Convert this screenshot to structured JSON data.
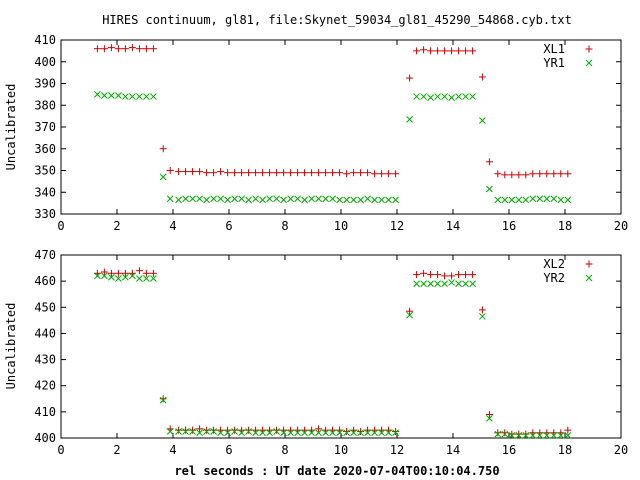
{
  "title": "HIRES continuum, gl81, file:Skynet_59034_gl81_45290_54868.cyb.txt",
  "xlabel": "rel seconds : UT date 2020-07-04T00:10:04.750",
  "chart_data": [
    {
      "type": "scatter",
      "ylabel": "Uncalibrated",
      "xlim": [
        0,
        20
      ],
      "ylim": [
        330,
        410
      ],
      "xticks": [
        0,
        2,
        4,
        6,
        8,
        10,
        12,
        14,
        16,
        18,
        20
      ],
      "yticks": [
        330,
        340,
        350,
        360,
        370,
        380,
        390,
        400,
        410
      ],
      "legend_position": "top-right",
      "grid": false,
      "series": [
        {
          "name": "XL1",
          "marker": "+",
          "color": "#cc0000",
          "x": [
            1.3,
            1.55,
            1.8,
            2.05,
            2.3,
            2.55,
            2.8,
            3.05,
            3.3,
            3.65,
            3.9,
            4.2,
            4.45,
            4.7,
            4.95,
            5.2,
            5.45,
            5.7,
            5.95,
            6.2,
            6.45,
            6.7,
            6.95,
            7.2,
            7.45,
            7.7,
            7.95,
            8.2,
            8.45,
            8.7,
            8.95,
            9.2,
            9.45,
            9.7,
            9.95,
            10.2,
            10.45,
            10.7,
            10.95,
            11.2,
            11.45,
            11.7,
            11.95,
            12.45,
            12.7,
            12.95,
            13.2,
            13.45,
            13.7,
            13.95,
            14.2,
            14.45,
            14.7,
            15.05,
            15.3,
            15.6,
            15.85,
            16.1,
            16.35,
            16.6,
            16.85,
            17.1,
            17.35,
            17.6,
            17.85,
            18.1
          ],
          "y": [
            406,
            406,
            406.5,
            406,
            406,
            406.5,
            406,
            406,
            406,
            360,
            350,
            349.5,
            349.5,
            349.5,
            349.5,
            349,
            349,
            349.5,
            349,
            349,
            349,
            349,
            349,
            349,
            349,
            349,
            349,
            349,
            349,
            349,
            349,
            349,
            349,
            349,
            349,
            348.5,
            349,
            349,
            349,
            348.5,
            348.5,
            348.5,
            348.5,
            392.5,
            405,
            405.5,
            405,
            405,
            405,
            405,
            405,
            405,
            405,
            393,
            354,
            348.5,
            348,
            348,
            348,
            348,
            348.5,
            348.5,
            348.5,
            348.5,
            348.5,
            348.5
          ]
        },
        {
          "name": "YR1",
          "marker": "x",
          "color": "#00aa00",
          "x": [
            1.3,
            1.55,
            1.8,
            2.05,
            2.3,
            2.55,
            2.8,
            3.05,
            3.3,
            3.65,
            3.9,
            4.2,
            4.45,
            4.7,
            4.95,
            5.2,
            5.45,
            5.7,
            5.95,
            6.2,
            6.45,
            6.7,
            6.95,
            7.2,
            7.45,
            7.7,
            7.95,
            8.2,
            8.45,
            8.7,
            8.95,
            9.2,
            9.45,
            9.7,
            9.95,
            10.2,
            10.45,
            10.7,
            10.95,
            11.2,
            11.45,
            11.7,
            11.95,
            12.45,
            12.7,
            12.95,
            13.2,
            13.45,
            13.7,
            13.95,
            14.2,
            14.45,
            14.7,
            15.05,
            15.3,
            15.6,
            15.85,
            16.1,
            16.35,
            16.6,
            16.85,
            17.1,
            17.35,
            17.6,
            17.85,
            18.1
          ],
          "y": [
            385,
            384.5,
            384.5,
            384.5,
            384,
            384,
            384,
            384,
            384,
            347,
            337,
            336.5,
            337,
            337,
            337,
            336.5,
            337,
            337,
            336.5,
            337,
            337,
            336.5,
            337,
            336.5,
            337,
            337,
            336.5,
            337,
            337,
            336.5,
            337,
            337,
            337,
            337,
            336.5,
            336.5,
            336.5,
            336.5,
            337,
            336.5,
            336.5,
            336.5,
            336.5,
            373.5,
            384,
            384,
            383.5,
            384,
            384,
            383.5,
            384,
            384,
            384,
            373,
            341.5,
            336.5,
            336.5,
            336.5,
            336.5,
            336.5,
            337,
            337,
            337,
            337,
            336.5,
            336.5
          ]
        }
      ]
    },
    {
      "type": "scatter",
      "ylabel": "Uncalibrated",
      "xlim": [
        0,
        20
      ],
      "ylim": [
        400,
        470
      ],
      "xticks": [
        0,
        2,
        4,
        6,
        8,
        10,
        12,
        14,
        16,
        18,
        20
      ],
      "yticks": [
        400,
        410,
        420,
        430,
        440,
        450,
        460,
        470
      ],
      "legend_position": "top-right",
      "grid": false,
      "series": [
        {
          "name": "XL2",
          "marker": "+",
          "color": "#cc0000",
          "x": [
            1.3,
            1.55,
            1.8,
            2.05,
            2.3,
            2.55,
            2.8,
            3.05,
            3.3,
            3.65,
            3.9,
            4.2,
            4.45,
            4.7,
            4.95,
            5.2,
            5.45,
            5.7,
            5.95,
            6.2,
            6.45,
            6.7,
            6.95,
            7.2,
            7.45,
            7.7,
            7.95,
            8.2,
            8.45,
            8.7,
            8.95,
            9.2,
            9.45,
            9.7,
            9.95,
            10.2,
            10.45,
            10.7,
            10.95,
            11.2,
            11.45,
            11.7,
            11.95,
            12.45,
            12.7,
            12.95,
            13.2,
            13.45,
            13.7,
            13.95,
            14.2,
            14.45,
            14.7,
            15.05,
            15.3,
            15.6,
            15.85,
            16.1,
            16.35,
            16.6,
            16.85,
            17.1,
            17.35,
            17.6,
            17.85,
            18.1
          ],
          "y": [
            463,
            463.5,
            463,
            463,
            463,
            463,
            464,
            463,
            463,
            415,
            403.5,
            403,
            403,
            403,
            403.5,
            403,
            403,
            403,
            403,
            403,
            403,
            403,
            403,
            403,
            403,
            403,
            403,
            403,
            403,
            403,
            403,
            403.5,
            403,
            403,
            403,
            402.5,
            403,
            402.5,
            403,
            403,
            403,
            403,
            402.5,
            448.5,
            462.5,
            463,
            462.5,
            462.5,
            462,
            462,
            462.5,
            462.5,
            462.5,
            449,
            409,
            402,
            402,
            401.5,
            401.5,
            401.5,
            402,
            402,
            402,
            402,
            402,
            403
          ]
        },
        {
          "name": "YR2",
          "marker": "x",
          "color": "#00aa00",
          "x": [
            1.3,
            1.55,
            1.8,
            2.05,
            2.3,
            2.55,
            2.8,
            3.05,
            3.3,
            3.65,
            3.9,
            4.2,
            4.45,
            4.7,
            4.95,
            5.2,
            5.45,
            5.7,
            5.95,
            6.2,
            6.45,
            6.7,
            6.95,
            7.2,
            7.45,
            7.7,
            7.95,
            8.2,
            8.45,
            8.7,
            8.95,
            9.2,
            9.45,
            9.7,
            9.95,
            10.2,
            10.45,
            10.7,
            10.95,
            11.2,
            11.45,
            11.7,
            11.95,
            12.45,
            12.7,
            12.95,
            13.2,
            13.45,
            13.7,
            13.95,
            14.2,
            14.45,
            14.7,
            15.05,
            15.3,
            15.6,
            15.85,
            16.1,
            16.35,
            16.6,
            16.85,
            17.1,
            17.35,
            17.6,
            17.85,
            18.1
          ],
          "y": [
            462,
            462,
            461.5,
            461,
            461.5,
            462,
            461,
            461,
            461,
            414.5,
            402.5,
            402.5,
            402.5,
            402.5,
            402,
            402.5,
            402.5,
            402,
            402,
            402.5,
            402,
            402.5,
            402,
            402,
            402,
            402.5,
            402,
            402,
            402,
            402,
            402,
            402,
            402,
            402,
            402,
            402,
            402,
            402,
            402,
            402,
            402,
            402,
            402,
            447,
            459,
            459,
            459,
            459,
            459,
            459.5,
            459,
            459,
            459,
            446.5,
            407.5,
            401.5,
            401.5,
            401,
            401,
            401,
            401,
            401,
            401,
            401,
            401,
            401
          ]
        }
      ]
    }
  ]
}
